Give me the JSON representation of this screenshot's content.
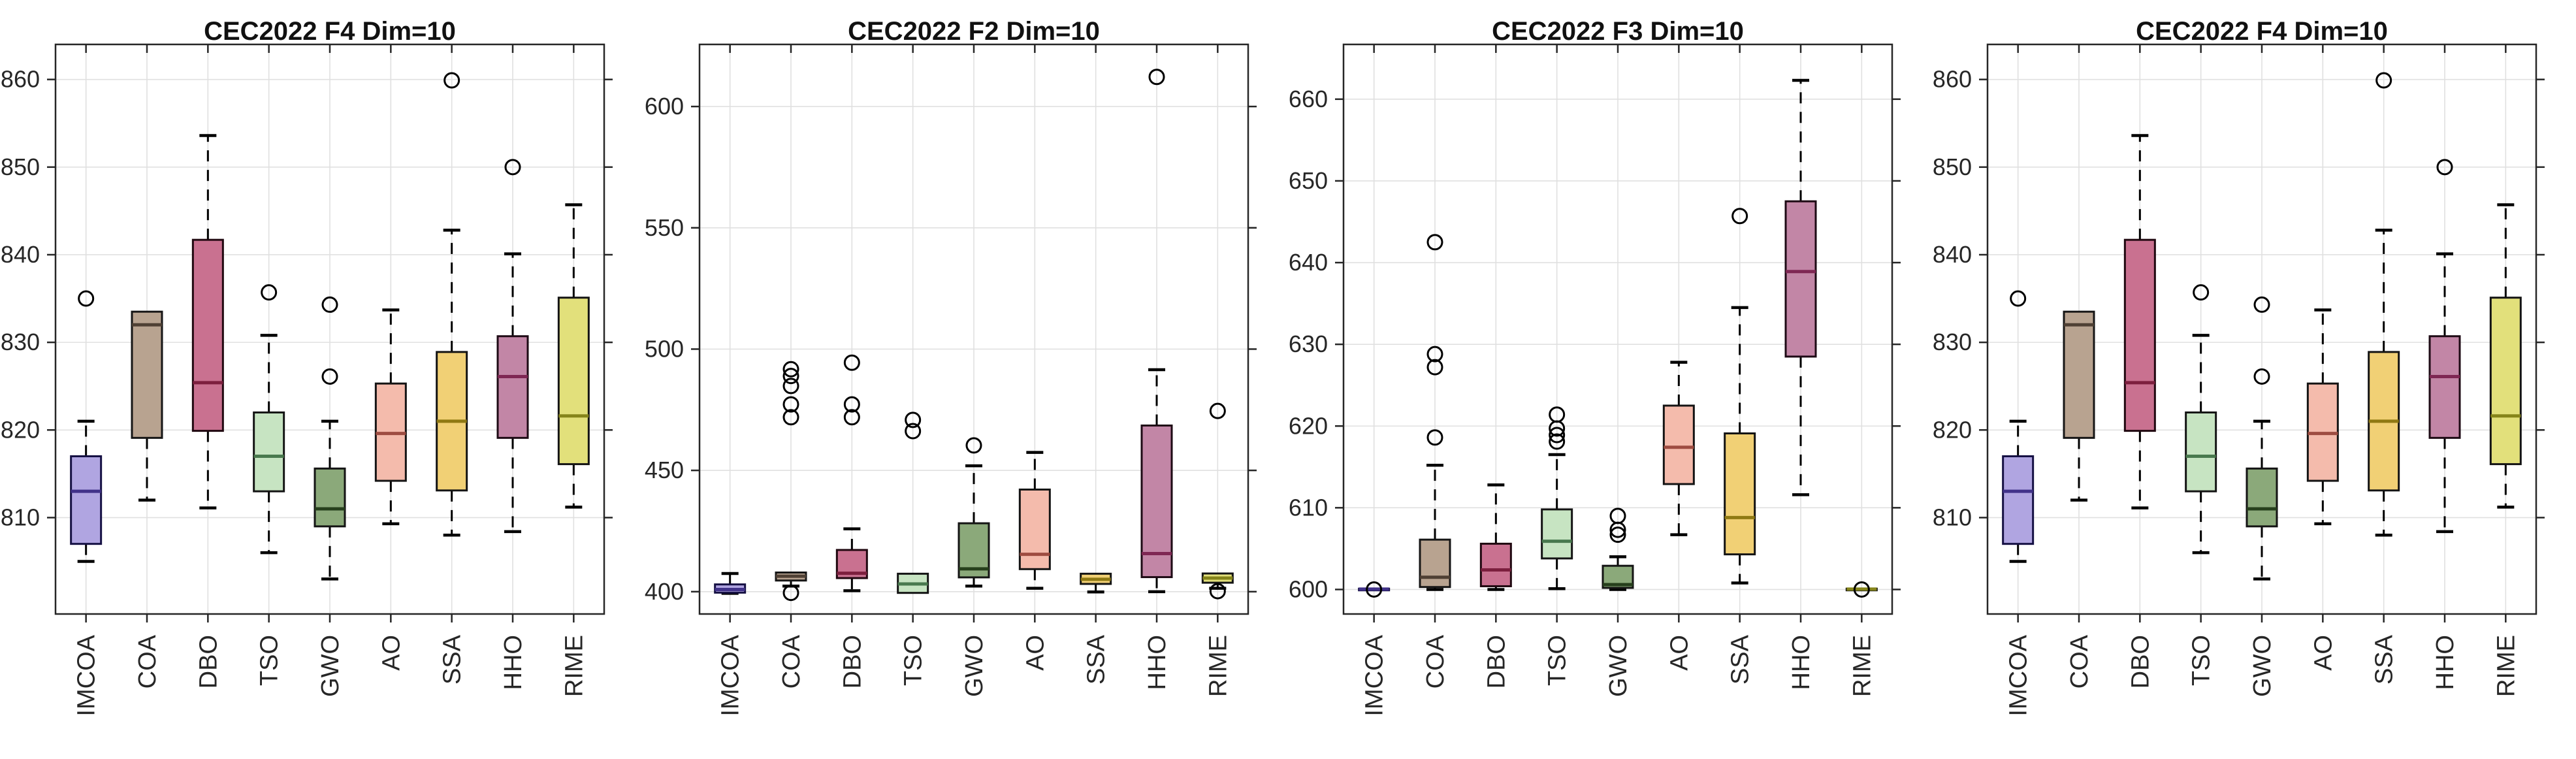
{
  "figure": {
    "background": "#ffffff",
    "axis_color": "#262626",
    "grid_color": "#e0e0e0",
    "tick_label_color": "#262626",
    "title_color": "#111111",
    "whisker_color": "#000000",
    "outlier_color": "#000000"
  },
  "series_colors": [
    {
      "label": "IMCOA",
      "fill": "#b0a5e1",
      "edge": "#151043",
      "median": "#413289"
    },
    {
      "label": "COA",
      "fill": "#b8a390",
      "edge": "#161616",
      "median": "#4f4034"
    },
    {
      "label": "DBO",
      "fill": "#c97190",
      "edge": "#200810",
      "median": "#7c1f3e"
    },
    {
      "label": "TSO",
      "fill": "#c7e4c2",
      "edge": "#141414",
      "median": "#49794e"
    },
    {
      "label": "GWO",
      "fill": "#8ba97a",
      "edge": "#141414",
      "median": "#263f1c"
    },
    {
      "label": "AO",
      "fill": "#f4bbac",
      "edge": "#141414",
      "median": "#9e4c41"
    },
    {
      "label": "SSA",
      "fill": "#f1d075",
      "edge": "#141414",
      "median": "#8f7913"
    },
    {
      "label": "HHO",
      "fill": "#c286a6",
      "edge": "#1d0a14",
      "median": "#7e2753"
    },
    {
      "label": "RIME",
      "fill": "#e2e07b",
      "edge": "#141414",
      "median": "#85841a"
    }
  ],
  "chart_data": [
    {
      "type": "box",
      "title": "CEC2022 F4 Dim=10",
      "categories": [
        "IMCOA",
        "COA",
        "DBO",
        "TSO",
        "GWO",
        "AO",
        "SSA",
        "HHO",
        "RIME"
      ],
      "yticks": [
        810,
        820,
        830,
        840,
        850,
        860
      ],
      "ylim": [
        799,
        864
      ],
      "grid": true,
      "boxes": [
        {
          "label": "IMCOA",
          "whisker_low": 805.0,
          "q1": 807.0,
          "median": 813.0,
          "q3": 817.0,
          "whisker_high": 821.0,
          "outliers": [
            835.0
          ]
        },
        {
          "label": "COA",
          "whisker_low": 812.0,
          "q1": 819.1,
          "median": 832.0,
          "q3": 833.5,
          "whisker_high": 833.5,
          "outliers": []
        },
        {
          "label": "DBO",
          "whisker_low": 811.1,
          "q1": 819.9,
          "median": 825.4,
          "q3": 841.7,
          "whisker_high": 853.6,
          "outliers": []
        },
        {
          "label": "TSO",
          "whisker_low": 806.0,
          "q1": 813.0,
          "median": 817.0,
          "q3": 822.0,
          "whisker_high": 830.8,
          "outliers": [
            835.7
          ]
        },
        {
          "label": "GWO",
          "whisker_low": 803.0,
          "q1": 809.0,
          "median": 811.0,
          "q3": 815.6,
          "whisker_high": 821.0,
          "outliers": [
            826.1,
            834.3
          ]
        },
        {
          "label": "AO",
          "whisker_low": 809.3,
          "q1": 814.2,
          "median": 819.6,
          "q3": 825.3,
          "whisker_high": 833.7,
          "outliers": []
        },
        {
          "label": "SSA",
          "whisker_low": 808.0,
          "q1": 813.1,
          "median": 821.0,
          "q3": 828.9,
          "whisker_high": 842.8,
          "outliers": [
            859.9
          ]
        },
        {
          "label": "HHO",
          "whisker_low": 808.4,
          "q1": 819.1,
          "median": 826.1,
          "q3": 830.7,
          "whisker_high": 840.1,
          "outliers": [
            850.0
          ]
        },
        {
          "label": "RIME",
          "whisker_low": 811.2,
          "q1": 816.1,
          "median": 821.6,
          "q3": 835.1,
          "whisker_high": 845.7,
          "outliers": []
        }
      ]
    },
    {
      "type": "box",
      "title": "CEC2022 F2 Dim=10",
      "categories": [
        "IMCOA",
        "COA",
        "DBO",
        "TSO",
        "GWO",
        "AO",
        "SSA",
        "HHO",
        "RIME"
      ],
      "yticks": [
        400,
        450,
        500,
        550,
        600
      ],
      "ylim": [
        390.8,
        625.6
      ],
      "grid": true,
      "boxes": [
        {
          "label": "IMCOA",
          "whisker_low": 399.3,
          "q1": 399.6,
          "median": 400.9,
          "q3": 403.0,
          "whisker_high": 407.5,
          "outliers": []
        },
        {
          "label": "COA",
          "whisker_low": 402.3,
          "q1": 404.6,
          "median": 406.4,
          "q3": 407.9,
          "whisker_high": 407.9,
          "outliers": [
            399.5,
            471.9,
            477.2,
            484.8,
            488.9,
            491.7
          ]
        },
        {
          "label": "DBO",
          "whisker_low": 400.4,
          "q1": 405.6,
          "median": 407.6,
          "q3": 417.2,
          "whisker_high": 425.9,
          "outliers": [
            471.9,
            477.2,
            494.4
          ]
        },
        {
          "label": "TSO",
          "whisker_low": 399.5,
          "q1": 399.5,
          "median": 403.2,
          "q3": 407.4,
          "whisker_high": 407.4,
          "outliers": [
            466.2,
            470.8
          ]
        },
        {
          "label": "GWO",
          "whisker_low": 402.3,
          "q1": 405.9,
          "median": 409.4,
          "q3": 428.2,
          "whisker_high": 451.9,
          "outliers": [
            460.3
          ]
        },
        {
          "label": "AO",
          "whisker_low": 401.4,
          "q1": 409.3,
          "median": 415.4,
          "q3": 442.1,
          "whisker_high": 457.4,
          "outliers": []
        },
        {
          "label": "SSA",
          "whisker_low": 399.9,
          "q1": 403.2,
          "median": 405.1,
          "q3": 407.4,
          "whisker_high": 407.4,
          "outliers": []
        },
        {
          "label": "HHO",
          "whisker_low": 400.0,
          "q1": 406.0,
          "median": 415.7,
          "q3": 468.5,
          "whisker_high": 491.5,
          "outliers": [
            612.2
          ]
        },
        {
          "label": "RIME",
          "whisker_low": 401.4,
          "q1": 403.7,
          "median": 405.6,
          "q3": 407.5,
          "whisker_high": 407.5,
          "outliers": [
            400.2,
            474.5
          ]
        }
      ]
    },
    {
      "type": "box",
      "title": "CEC2022 F3 Dim=10",
      "categories": [
        "IMCOA",
        "COA",
        "DBO",
        "TSO",
        "GWO",
        "AO",
        "SSA",
        "HHO",
        "RIME"
      ],
      "yticks": [
        600,
        610,
        620,
        630,
        640,
        650,
        660
      ],
      "ylim": [
        597,
        666.7
      ],
      "grid": true,
      "boxes": [
        {
          "label": "IMCOA",
          "whisker_low": 600.0,
          "q1": 600.0,
          "median": 600.05,
          "q3": 600.1,
          "whisker_high": 600.1,
          "outliers": [
            600.0
          ]
        },
        {
          "label": "COA",
          "whisker_low": 600.0,
          "q1": 600.3,
          "median": 601.5,
          "q3": 606.1,
          "whisker_high": 615.2,
          "outliers": [
            618.6,
            627.2,
            628.8,
            642.5
          ]
        },
        {
          "label": "DBO",
          "whisker_low": 600.0,
          "q1": 600.4,
          "median": 602.4,
          "q3": 605.6,
          "whisker_high": 612.8,
          "outliers": []
        },
        {
          "label": "TSO",
          "whisker_low": 600.1,
          "q1": 603.8,
          "median": 605.9,
          "q3": 609.8,
          "whisker_high": 616.5,
          "outliers": [
            618.1,
            618.9,
            619.7,
            621.4
          ]
        },
        {
          "label": "GWO",
          "whisker_low": 600.0,
          "q1": 600.2,
          "median": 600.6,
          "q3": 602.9,
          "whisker_high": 604.0,
          "outliers": [
            606.7,
            607.3,
            609.0
          ]
        },
        {
          "label": "AO",
          "whisker_low": 606.7,
          "q1": 612.9,
          "median": 617.4,
          "q3": 622.5,
          "whisker_high": 627.8,
          "outliers": []
        },
        {
          "label": "SSA",
          "whisker_low": 600.8,
          "q1": 604.3,
          "median": 608.8,
          "q3": 619.1,
          "whisker_high": 634.5,
          "outliers": [
            645.7
          ]
        },
        {
          "label": "HHO",
          "whisker_low": 611.6,
          "q1": 628.5,
          "median": 638.9,
          "q3": 647.5,
          "whisker_high": 662.3,
          "outliers": []
        },
        {
          "label": "RIME",
          "whisker_low": 600.0,
          "q1": 600.0,
          "median": 600.05,
          "q3": 600.1,
          "whisker_high": 600.1,
          "outliers": [
            600.0
          ]
        }
      ]
    },
    {
      "type": "box",
      "title": "CEC2022 F4 Dim=10",
      "categories": [
        "IMCOA",
        "COA",
        "DBO",
        "TSO",
        "GWO",
        "AO",
        "SSA",
        "HHO",
        "RIME"
      ],
      "yticks": [
        810,
        820,
        830,
        840,
        850,
        860
      ],
      "ylim": [
        799,
        864
      ],
      "grid": true,
      "boxes": [
        {
          "label": "IMCOA",
          "whisker_low": 805.0,
          "q1": 807.0,
          "median": 813.0,
          "q3": 817.0,
          "whisker_high": 821.0,
          "outliers": [
            835.0
          ]
        },
        {
          "label": "COA",
          "whisker_low": 812.0,
          "q1": 819.1,
          "median": 832.0,
          "q3": 833.5,
          "whisker_high": 833.5,
          "outliers": []
        },
        {
          "label": "DBO",
          "whisker_low": 811.1,
          "q1": 819.9,
          "median": 825.4,
          "q3": 841.7,
          "whisker_high": 853.6,
          "outliers": []
        },
        {
          "label": "TSO",
          "whisker_low": 806.0,
          "q1": 813.0,
          "median": 817.0,
          "q3": 822.0,
          "whisker_high": 830.8,
          "outliers": [
            835.7
          ]
        },
        {
          "label": "GWO",
          "whisker_low": 803.0,
          "q1": 809.0,
          "median": 811.0,
          "q3": 815.6,
          "whisker_high": 821.0,
          "outliers": [
            826.1,
            834.3
          ]
        },
        {
          "label": "AO",
          "whisker_low": 809.3,
          "q1": 814.2,
          "median": 819.6,
          "q3": 825.3,
          "whisker_high": 833.7,
          "outliers": []
        },
        {
          "label": "SSA",
          "whisker_low": 808.0,
          "q1": 813.1,
          "median": 821.0,
          "q3": 828.9,
          "whisker_high": 842.8,
          "outliers": [
            859.9
          ]
        },
        {
          "label": "HHO",
          "whisker_low": 808.4,
          "q1": 819.1,
          "median": 826.1,
          "q3": 830.7,
          "whisker_high": 840.1,
          "outliers": [
            850.0
          ]
        },
        {
          "label": "RIME",
          "whisker_low": 811.2,
          "q1": 816.1,
          "median": 821.6,
          "q3": 835.1,
          "whisker_high": 845.7,
          "outliers": []
        }
      ]
    }
  ]
}
